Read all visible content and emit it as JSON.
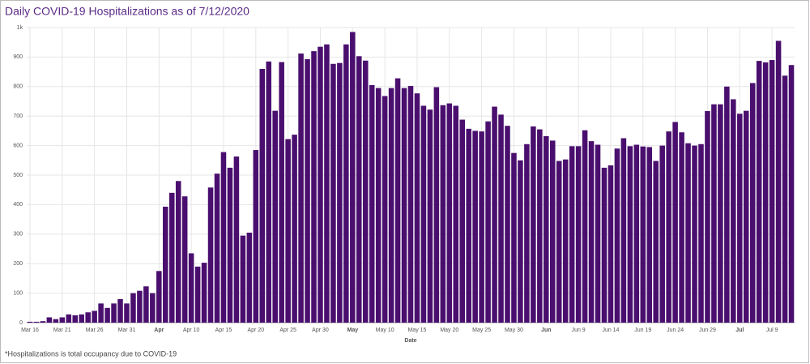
{
  "chart_data": {
    "type": "bar",
    "title": "Daily COVID-19  Hospitalizations as of 7/12/2020",
    "x_label": "Date",
    "footnote": "*Hospitalizations is total occupancy due to COVID-19",
    "color": "#4a0f6e",
    "grid": true,
    "categories": [
      "Mar 16",
      null,
      null,
      null,
      null,
      "Mar 21",
      null,
      null,
      null,
      null,
      "Mar 26",
      null,
      null,
      null,
      null,
      "Mar 31",
      null,
      null,
      null,
      null,
      "Apr",
      null,
      null,
      null,
      null,
      "Apr 10",
      null,
      null,
      null,
      null,
      "Apr 15",
      null,
      null,
      null,
      null,
      "Apr 20",
      null,
      null,
      null,
      null,
      "Apr 25",
      null,
      null,
      null,
      null,
      "Apr 30",
      null,
      null,
      null,
      null,
      "May",
      null,
      null,
      null,
      null,
      "May 10",
      null,
      null,
      null,
      null,
      "May 15",
      null,
      null,
      null,
      null,
      "May 20",
      null,
      null,
      null,
      null,
      "May 25",
      null,
      null,
      null,
      null,
      "May 30",
      null,
      null,
      null,
      null,
      "Jun",
      null,
      null,
      null,
      null,
      "Jun 9",
      null,
      null,
      null,
      null,
      "Jun 14",
      null,
      null,
      null,
      null,
      "Jun 19",
      null,
      null,
      null,
      null,
      "Jun 24",
      null,
      null,
      null,
      null,
      "Jun 29",
      null,
      null,
      null,
      null,
      "Jul",
      null,
      null,
      null,
      null,
      "Jul 9",
      null,
      null,
      null
    ],
    "values": [
      3,
      3,
      5,
      18,
      12,
      18,
      28,
      25,
      28,
      35,
      40,
      65,
      50,
      65,
      80,
      65,
      100,
      108,
      123,
      100,
      175,
      393,
      440,
      480,
      428,
      235,
      190,
      203,
      458,
      505,
      578,
      525,
      563,
      295,
      305,
      585,
      860,
      885,
      718,
      883,
      622,
      637,
      912,
      893,
      920,
      935,
      943,
      877,
      880,
      943,
      985,
      903,
      888,
      805,
      795,
      768,
      795,
      828,
      795,
      802,
      777,
      735,
      722,
      798,
      737,
      743,
      735,
      688,
      657,
      650,
      648,
      682,
      732,
      705,
      667,
      575,
      550,
      605,
      665,
      655,
      632,
      617,
      548,
      553,
      598,
      598,
      652,
      615,
      603,
      525,
      533,
      590,
      625,
      598,
      603,
      597,
      595,
      548,
      600,
      648,
      680,
      645,
      608,
      600,
      605,
      717,
      740,
      740,
      800,
      757,
      708,
      718,
      812,
      887,
      882,
      890,
      955,
      837,
      873
    ],
    "ylim": [
      0,
      1000
    ],
    "yticks": [
      0,
      100,
      200,
      300,
      400,
      500,
      600,
      700,
      800,
      900,
      {
        "value": 1000,
        "label": "1k"
      }
    ]
  }
}
